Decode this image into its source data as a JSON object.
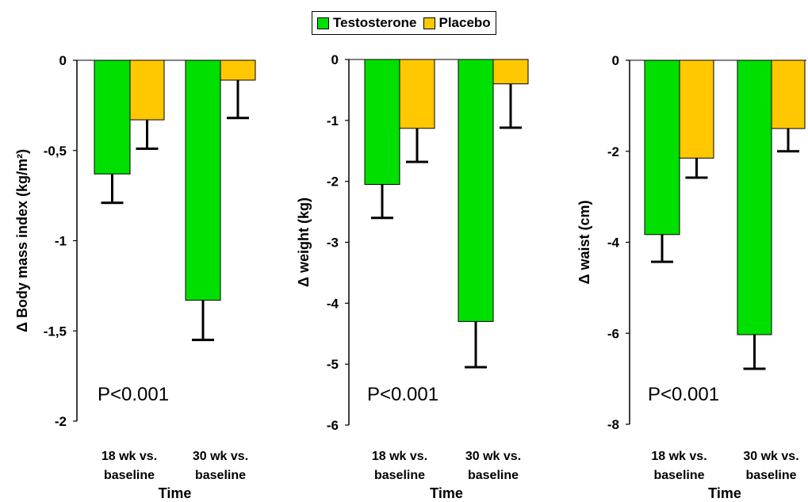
{
  "legend": {
    "items": [
      {
        "label": "Testosterone",
        "color": "#00e000"
      },
      {
        "label": "Placebo",
        "color": "#ffc800"
      }
    ]
  },
  "chart_data": [
    {
      "type": "bar",
      "title": "",
      "xlabel": "Time",
      "ylabel": "Δ Body mass index (kg/m²)",
      "categories": [
        "18 wk vs. baseline",
        "30 wk vs. baseline"
      ],
      "ylim": [
        -2,
        0
      ],
      "yticks": [
        0,
        -0.5,
        -1,
        -1.5,
        -2
      ],
      "ytick_labels": [
        "0",
        "-0,5",
        "-1",
        "-1,5",
        "-2"
      ],
      "series": [
        {
          "name": "Testosterone",
          "color": "#00e000",
          "values": [
            -0.63,
            -1.33
          ],
          "error": [
            0.16,
            0.22
          ]
        },
        {
          "name": "Placebo",
          "color": "#ffc800",
          "values": [
            -0.33,
            -0.11
          ],
          "error": [
            0.16,
            0.21
          ]
        }
      ],
      "annotation": "P<0.001",
      "grid": false
    },
    {
      "type": "bar",
      "title": "",
      "xlabel": "Time",
      "ylabel": "Δ weight (kg)",
      "categories": [
        "18 wk vs. baseline",
        "30 wk vs. baseline"
      ],
      "ylim": [
        -6,
        0
      ],
      "yticks": [
        0,
        -1,
        -2,
        -3,
        -4,
        -5,
        -6
      ],
      "ytick_labels": [
        "0",
        "-1",
        "-2",
        "-3",
        "-4",
        "-5",
        "-6"
      ],
      "series": [
        {
          "name": "Testosterone",
          "color": "#00e000",
          "values": [
            -2.05,
            -4.3
          ],
          "error": [
            0.55,
            0.75
          ]
        },
        {
          "name": "Placebo",
          "color": "#ffc800",
          "values": [
            -1.13,
            -0.4
          ],
          "error": [
            0.55,
            0.72
          ]
        }
      ],
      "annotation": "P<0.001",
      "grid": false
    },
    {
      "type": "bar",
      "title": "",
      "xlabel": "Time",
      "ylabel": "Δ waist (cm)",
      "categories": [
        "18 wk vs. baseline",
        "30 wk vs. baseline"
      ],
      "ylim": [
        -8,
        0
      ],
      "yticks": [
        0,
        -2,
        -4,
        -6,
        -8
      ],
      "ytick_labels": [
        "0",
        "-2",
        "-4",
        "-6",
        "-8"
      ],
      "series": [
        {
          "name": "Testosterone",
          "color": "#00e000",
          "values": [
            -3.83,
            -6.03
          ],
          "error": [
            0.6,
            0.75
          ]
        },
        {
          "name": "Placebo",
          "color": "#ffc800",
          "values": [
            -2.15,
            -1.5
          ],
          "error": [
            0.43,
            0.5
          ]
        }
      ],
      "annotation": "P<0.001",
      "grid": false
    }
  ]
}
